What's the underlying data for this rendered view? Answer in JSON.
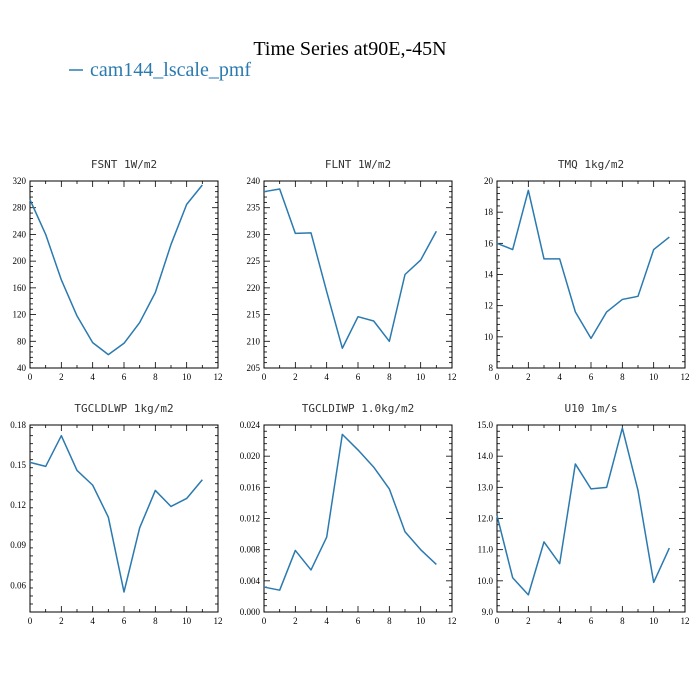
{
  "figure": {
    "title": "Time Series at90E,-45N",
    "legend": {
      "entries": [
        {
          "name": "cam144_lscale_pmf",
          "color": "#2a7ab0"
        }
      ],
      "placement": "top-left"
    }
  },
  "chart_data": [
    {
      "type": "line",
      "title": "FSNT  1W/m2",
      "x": [
        0,
        1,
        2,
        3,
        4,
        5,
        6,
        7,
        8,
        9,
        10,
        11
      ],
      "series": [
        {
          "name": "cam144_lscale_pmf",
          "values": [
            292,
            240,
            172,
            118,
            78,
            60,
            77,
            108,
            153,
            225,
            285,
            314
          ]
        }
      ],
      "xlim": [
        0,
        12
      ],
      "ylim": [
        40,
        320
      ],
      "xticks": [
        0,
        2,
        4,
        6,
        8,
        10,
        12
      ],
      "xtick_labels": [
        "0",
        "2",
        "4",
        "6",
        "8",
        "10",
        "12"
      ],
      "yticks": [
        40,
        80,
        120,
        160,
        200,
        240,
        280,
        320
      ],
      "ytick_labels": [
        "40",
        "80",
        "120",
        "160",
        "200",
        "240",
        "280",
        "320"
      ]
    },
    {
      "type": "line",
      "title": "FLNT  1W/m2",
      "x": [
        0,
        1,
        2,
        3,
        4,
        5,
        6,
        7,
        8,
        9,
        10,
        11
      ],
      "series": [
        {
          "name": "cam144_lscale_pmf",
          "values": [
            238,
            238.5,
            230.2,
            230.3,
            219.3,
            208.7,
            214.6,
            213.8,
            210,
            222.5,
            225.2,
            230.6
          ]
        }
      ],
      "xlim": [
        0,
        12
      ],
      "ylim": [
        205,
        240
      ],
      "xticks": [
        0,
        2,
        4,
        6,
        8,
        10,
        12
      ],
      "xtick_labels": [
        "0",
        "2",
        "4",
        "6",
        "8",
        "10",
        "12"
      ],
      "yticks": [
        205,
        210,
        215,
        220,
        225,
        230,
        235,
        240
      ],
      "ytick_labels": [
        "205",
        "210",
        "215",
        "220",
        "225",
        "230",
        "235",
        "240"
      ]
    },
    {
      "type": "line",
      "title": "TMQ  1kg/m2",
      "x": [
        0,
        1,
        2,
        3,
        4,
        5,
        6,
        7,
        8,
        9,
        10,
        11
      ],
      "series": [
        {
          "name": "cam144_lscale_pmf",
          "values": [
            16,
            15.6,
            19.4,
            15,
            15,
            11.6,
            9.9,
            11.6,
            12.4,
            12.6,
            15.6,
            16.4
          ]
        }
      ],
      "xlim": [
        0,
        12
      ],
      "ylim": [
        8,
        20
      ],
      "xticks": [
        0,
        2,
        4,
        6,
        8,
        10,
        12
      ],
      "xtick_labels": [
        "0",
        "2",
        "4",
        "6",
        "8",
        "10",
        "12"
      ],
      "yticks": [
        8,
        10,
        12,
        14,
        16,
        18,
        20
      ],
      "ytick_labels": [
        "8",
        "10",
        "12",
        "14",
        "16",
        "18",
        "20"
      ]
    },
    {
      "type": "line",
      "title": "TGCLDLWP  1kg/m2",
      "x": [
        0,
        1,
        2,
        3,
        4,
        5,
        6,
        7,
        8,
        9,
        10,
        11
      ],
      "series": [
        {
          "name": "cam144_lscale_pmf",
          "values": [
            0.152,
            0.149,
            0.172,
            0.146,
            0.135,
            0.111,
            0.055,
            0.103,
            0.131,
            0.119,
            0.125,
            0.139
          ]
        }
      ],
      "xlim": [
        0,
        12
      ],
      "ylim": [
        0.04,
        0.18
      ],
      "xticks": [
        0,
        2,
        4,
        6,
        8,
        10,
        12
      ],
      "xtick_labels": [
        "0",
        "2",
        "4",
        "6",
        "8",
        "10",
        "12"
      ],
      "yticks": [
        0.06,
        0.09,
        0.12,
        0.15,
        0.18
      ],
      "ytick_labels": [
        "0.06",
        "0.09",
        "0.12",
        "0.15",
        "0.18"
      ]
    },
    {
      "type": "line",
      "title": "TGCLDIWP  1.0kg/m2",
      "x": [
        0,
        1,
        2,
        3,
        4,
        5,
        6,
        7,
        8,
        9,
        10,
        11
      ],
      "series": [
        {
          "name": "cam144_lscale_pmf",
          "values": [
            0.0032,
            0.0028,
            0.0079,
            0.0054,
            0.0096,
            0.0228,
            0.0208,
            0.0186,
            0.0158,
            0.0103,
            0.008,
            0.0061
          ]
        }
      ],
      "xlim": [
        0,
        12
      ],
      "ylim": [
        0,
        0.024
      ],
      "xticks": [
        0,
        2,
        4,
        6,
        8,
        10,
        12
      ],
      "xtick_labels": [
        "0",
        "2",
        "4",
        "6",
        "8",
        "10",
        "12"
      ],
      "yticks": [
        0,
        0.004,
        0.008,
        0.012,
        0.016,
        0.02,
        0.024
      ],
      "ytick_labels": [
        "0.000",
        "0.004",
        "0.008",
        "0.012",
        "0.016",
        "0.020",
        "0.024"
      ]
    },
    {
      "type": "line",
      "title": "U10  1m/s",
      "x": [
        0,
        1,
        2,
        3,
        4,
        5,
        6,
        7,
        8,
        9,
        10,
        11
      ],
      "series": [
        {
          "name": "cam144_lscale_pmf",
          "values": [
            12.1,
            10.1,
            9.55,
            11.25,
            10.55,
            13.75,
            12.95,
            13.0,
            14.9,
            12.9,
            9.95,
            11.05
          ]
        }
      ],
      "xlim": [
        0,
        12
      ],
      "ylim": [
        9,
        15
      ],
      "xticks": [
        0,
        2,
        4,
        6,
        8,
        10,
        12
      ],
      "xtick_labels": [
        "0",
        "2",
        "4",
        "6",
        "8",
        "10",
        "12"
      ],
      "yticks": [
        9,
        10,
        11,
        12,
        13,
        14,
        15
      ],
      "ytick_labels": [
        "9.0",
        "10.0",
        "11.0",
        "12.0",
        "13.0",
        "14.0",
        "15.0"
      ]
    }
  ]
}
